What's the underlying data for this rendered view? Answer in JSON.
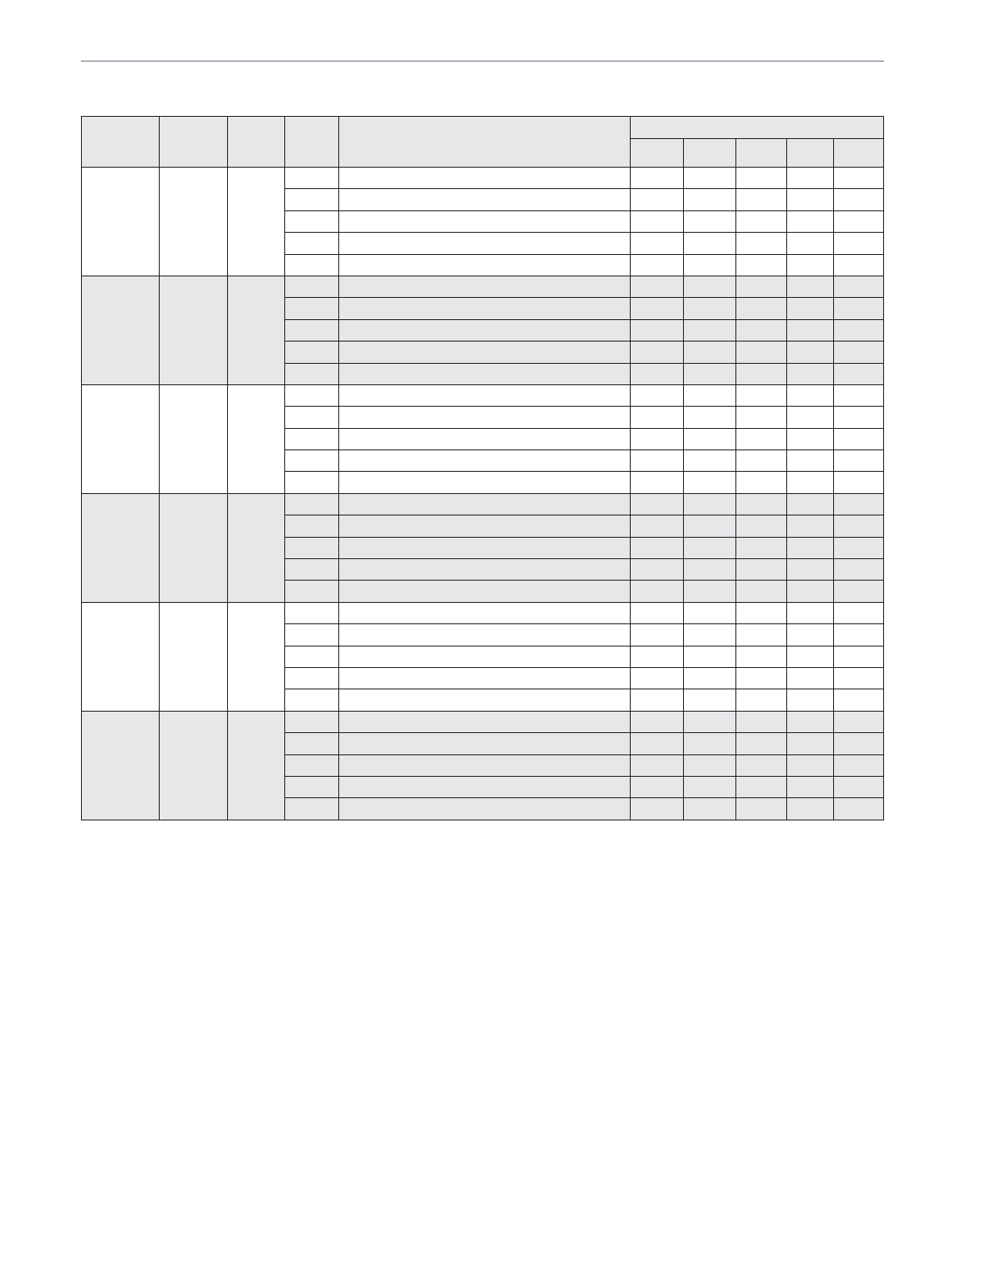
{
  "colors": {
    "header_fill": "#e6e7e9",
    "shaded_group_fill": "#e6e7e9",
    "rule_line": "#a3adb5",
    "border": "#111111"
  },
  "table": {
    "header": {
      "main_columns": [
        "",
        "",
        "",
        "",
        ""
      ],
      "group_header": "",
      "sub_columns": [
        "",
        "",
        "",
        "",
        ""
      ]
    },
    "groups": [
      {
        "shaded": false,
        "rows": [
          [
            "",
            "",
            "",
            "",
            "",
            ""
          ],
          [
            "",
            "",
            "",
            "",
            "",
            ""
          ],
          [
            "",
            "",
            "",
            "",
            "",
            ""
          ],
          [
            "",
            "",
            "",
            "",
            "",
            ""
          ],
          [
            "",
            "",
            "",
            "",
            "",
            ""
          ]
        ]
      },
      {
        "shaded": true,
        "rows": [
          [
            "",
            "",
            "",
            "",
            "",
            ""
          ],
          [
            "",
            "",
            "",
            "",
            "",
            ""
          ],
          [
            "",
            "",
            "",
            "",
            "",
            ""
          ],
          [
            "",
            "",
            "",
            "",
            "",
            ""
          ],
          [
            "",
            "",
            "",
            "",
            "",
            ""
          ]
        ]
      },
      {
        "shaded": false,
        "rows": [
          [
            "",
            "",
            "",
            "",
            "",
            ""
          ],
          [
            "",
            "",
            "",
            "",
            "",
            ""
          ],
          [
            "",
            "",
            "",
            "",
            "",
            ""
          ],
          [
            "",
            "",
            "",
            "",
            "",
            ""
          ],
          [
            "",
            "",
            "",
            "",
            "",
            ""
          ]
        ]
      },
      {
        "shaded": true,
        "rows": [
          [
            "",
            "",
            "",
            "",
            "",
            ""
          ],
          [
            "",
            "",
            "",
            "",
            "",
            ""
          ],
          [
            "",
            "",
            "",
            "",
            "",
            ""
          ],
          [
            "",
            "",
            "",
            "",
            "",
            ""
          ],
          [
            "",
            "",
            "",
            "",
            "",
            ""
          ]
        ]
      },
      {
        "shaded": false,
        "rows": [
          [
            "",
            "",
            "",
            "",
            "",
            ""
          ],
          [
            "",
            "",
            "",
            "",
            "",
            ""
          ],
          [
            "",
            "",
            "",
            "",
            "",
            ""
          ],
          [
            "",
            "",
            "",
            "",
            "",
            ""
          ],
          [
            "",
            "",
            "",
            "",
            "",
            ""
          ]
        ]
      },
      {
        "shaded": true,
        "rows": [
          [
            "",
            "",
            "",
            "",
            "",
            ""
          ],
          [
            "",
            "",
            "",
            "",
            "",
            ""
          ],
          [
            "",
            "",
            "",
            "",
            "",
            ""
          ],
          [
            "",
            "",
            "",
            "",
            "",
            ""
          ],
          [
            "",
            "",
            "",
            "",
            "",
            ""
          ]
        ]
      }
    ]
  }
}
